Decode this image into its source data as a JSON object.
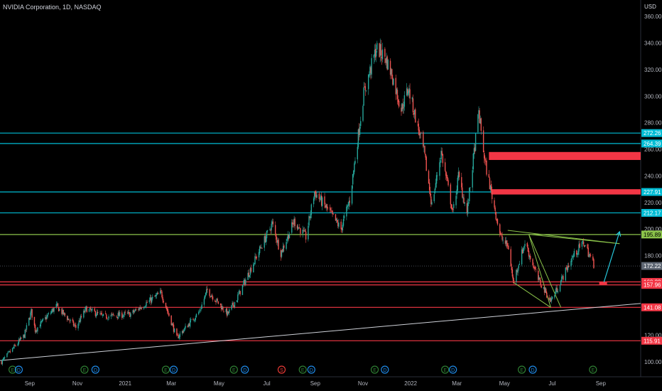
{
  "header": {
    "title": "NVIDIA Corporation, 1D, NASDAQ",
    "currency": "USD"
  },
  "colors": {
    "background": "#000000",
    "up": "#26a69a",
    "down": "#ef5350",
    "cyan_level": "#00bcd4",
    "green_level": "#8bc34a",
    "red_level": "#f23645",
    "trend_white": "#cfd2d9",
    "last_price": "#5e6673",
    "arrow": "#26c6da"
  },
  "chart_data": {
    "type": "candlestick",
    "title": "NVIDIA Corporation, 1D, NASDAQ",
    "y_unit": "USD",
    "ylim": [
      92,
      366
    ],
    "y_ticks": [
      100,
      120,
      140,
      160,
      180,
      200,
      220,
      240,
      260,
      280,
      300,
      320,
      340,
      360
    ],
    "x_ticks": [
      "Sep",
      "Nov",
      "2021",
      "Mar",
      "May",
      "Jul",
      "Sep",
      "Nov",
      "2022",
      "Mar",
      "May",
      "Jul",
      "Sep"
    ],
    "x_tick_dates": [
      "2020-09-01",
      "2020-11-01",
      "2021-01-01",
      "2021-03-01",
      "2021-05-01",
      "2021-07-01",
      "2021-09-01",
      "2021-11-01",
      "2022-01-01",
      "2022-03-01",
      "2022-05-01",
      "2022-07-01",
      "2022-09-01"
    ],
    "x_range": [
      "2020-07-25",
      "2022-10-22"
    ],
    "grid": false,
    "price_path": [
      [
        "2020-07-27",
        100
      ],
      [
        "2020-08-25",
        120
      ],
      [
        "2020-09-03",
        138
      ],
      [
        "2020-09-08",
        124
      ],
      [
        "2020-10-05",
        142
      ],
      [
        "2020-10-30",
        126
      ],
      [
        "2020-11-12",
        140
      ],
      [
        "2020-12-04",
        134
      ],
      [
        "2021-01-08",
        136
      ],
      [
        "2021-02-16",
        152
      ],
      [
        "2021-03-08",
        118
      ],
      [
        "2021-04-06",
        138
      ],
      [
        "2021-04-16",
        154
      ],
      [
        "2021-05-12",
        136
      ],
      [
        "2021-05-24",
        148
      ],
      [
        "2021-06-20",
        182
      ],
      [
        "2021-07-08",
        204
      ],
      [
        "2021-07-19",
        182
      ],
      [
        "2021-08-05",
        206
      ],
      [
        "2021-08-20",
        194
      ],
      [
        "2021-08-31",
        228
      ],
      [
        "2021-09-20",
        212
      ],
      [
        "2021-10-04",
        200
      ],
      [
        "2021-10-15",
        222
      ],
      [
        "2021-11-02",
        302
      ],
      [
        "2021-11-18",
        336
      ],
      [
        "2021-11-29",
        330
      ],
      [
        "2021-12-08",
        316
      ],
      [
        "2021-12-20",
        290
      ],
      [
        "2021-12-29",
        306
      ],
      [
        "2022-01-18",
        258
      ],
      [
        "2022-01-28",
        218
      ],
      [
        "2022-02-09",
        258
      ],
      [
        "2022-02-24",
        212
      ],
      [
        "2022-03-03",
        240
      ],
      [
        "2022-03-14",
        212
      ],
      [
        "2022-03-29",
        288
      ],
      [
        "2022-04-06",
        250
      ],
      [
        "2022-04-26",
        194
      ],
      [
        "2022-05-06",
        186
      ],
      [
        "2022-05-12",
        160
      ],
      [
        "2022-05-27",
        190
      ],
      [
        "2022-06-13",
        162
      ],
      [
        "2022-06-29",
        146
      ],
      [
        "2022-07-08",
        156
      ],
      [
        "2022-07-21",
        172
      ],
      [
        "2022-07-28",
        180
      ],
      [
        "2022-08-10",
        190
      ],
      [
        "2022-08-24",
        172
      ]
    ],
    "last_close": 172.22,
    "horizontal_levels": [
      {
        "value": 272.26,
        "label": "272.26",
        "style": "cyan"
      },
      {
        "value": 264.39,
        "label": "264.39",
        "style": "cyan"
      },
      {
        "value": 227.91,
        "label": "227.91",
        "style": "cyan"
      },
      {
        "value": 212.17,
        "label": "212.17",
        "style": "cyan"
      },
      {
        "value": 195.89,
        "label": "195.89",
        "style": "green"
      },
      {
        "value": 160.22,
        "label": "160.22",
        "style": "red"
      },
      {
        "value": 157.96,
        "label": "157.96",
        "style": "red"
      },
      {
        "value": 141.08,
        "label": "141.08",
        "style": "red"
      },
      {
        "value": 115.91,
        "label": "115.91",
        "style": "red"
      }
    ],
    "last_price_label": "172.22",
    "zones": [
      {
        "from": "2022-04-11",
        "to": "2022-10-22",
        "y_top": 258,
        "y_bottom": 252
      },
      {
        "from": "2022-04-14",
        "to": "2022-10-22",
        "y_top": 230,
        "y_bottom": 226
      },
      {
        "from": "2022-08-30",
        "to": "2022-09-09",
        "y_top": 160,
        "y_bottom": 158
      }
    ],
    "trendlines": [
      {
        "kind": "white",
        "points": [
          [
            "2020-07-25",
            101
          ],
          [
            "2022-10-22",
            144
          ]
        ]
      },
      {
        "kind": "green",
        "points": [
          [
            "2022-05-12",
            160
          ],
          [
            "2022-06-29",
            141
          ]
        ]
      },
      {
        "kind": "green",
        "points": [
          [
            "2022-06-29",
            141
          ],
          [
            "2022-06-01",
            196
          ]
        ]
      },
      {
        "kind": "green",
        "points": [
          [
            "2022-06-01",
            196
          ],
          [
            "2022-07-12",
            141
          ]
        ]
      },
      {
        "kind": "green",
        "points": [
          [
            "2022-06-01",
            196
          ],
          [
            "2022-09-25",
            189
          ]
        ]
      },
      {
        "kind": "green",
        "points": [
          [
            "2022-05-05",
            199
          ],
          [
            "2022-09-25",
            189
          ]
        ]
      }
    ],
    "projection": [
      [
        "2022-09-05",
        160
      ],
      [
        "2022-09-25",
        198
      ]
    ],
    "events": [
      {
        "date": "2020-08-10",
        "label": "E"
      },
      {
        "date": "2020-08-18",
        "label": "D"
      },
      {
        "date": "2020-11-10",
        "label": "E"
      },
      {
        "date": "2020-11-24",
        "label": "D"
      },
      {
        "date": "2021-02-22",
        "label": "E"
      },
      {
        "date": "2021-03-04",
        "label": "D"
      },
      {
        "date": "2021-05-20",
        "label": "E"
      },
      {
        "date": "2021-06-03",
        "label": "D"
      },
      {
        "date": "2021-07-20",
        "label": "S"
      },
      {
        "date": "2021-08-16",
        "label": "E"
      },
      {
        "date": "2021-08-27",
        "label": "D"
      },
      {
        "date": "2021-11-16",
        "label": "E"
      },
      {
        "date": "2021-11-29",
        "label": "D"
      },
      {
        "date": "2022-02-14",
        "label": "E"
      },
      {
        "date": "2022-02-24",
        "label": "D"
      },
      {
        "date": "2022-05-23",
        "label": "E"
      },
      {
        "date": "2022-06-06",
        "label": "D"
      },
      {
        "date": "2022-08-22",
        "label": "E"
      }
    ]
  }
}
